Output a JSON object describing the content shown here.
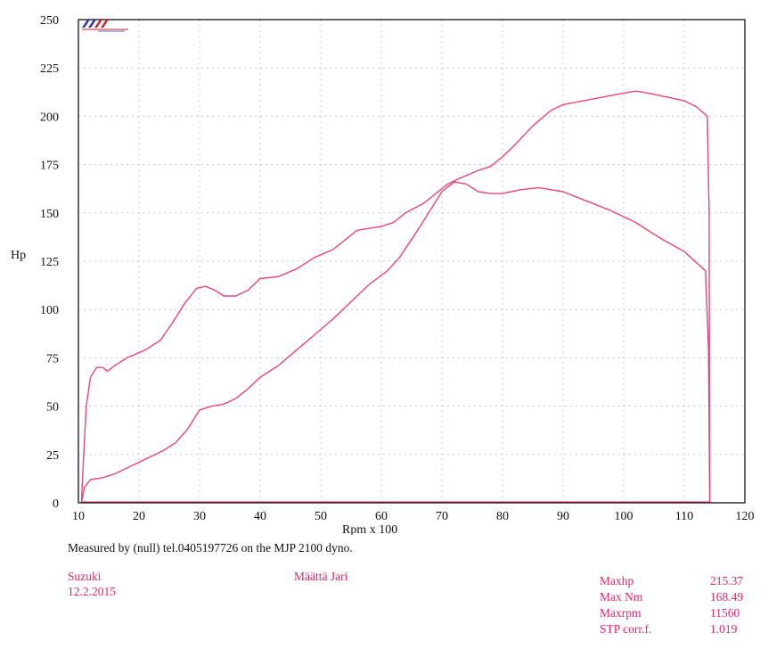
{
  "chart_data": {
    "type": "line",
    "title": "",
    "xlabel": "Rpm x 100",
    "ylabel": "Hp",
    "xlim": [
      10,
      120
    ],
    "ylim": [
      0,
      250
    ],
    "x_ticks": [
      "10",
      "20",
      "30",
      "40",
      "50",
      "60",
      "70",
      "80",
      "90",
      "100",
      "110",
      "120"
    ],
    "y_ticks": [
      "0",
      "25",
      "50",
      "75",
      "100",
      "125",
      "150",
      "175",
      "200",
      "225",
      "250"
    ],
    "grid": true,
    "colors": {
      "curve": "#e8447e",
      "axis": "#111111",
      "grid": "#c8c8c8"
    },
    "series": [
      {
        "points": [
          [
            10.5,
            0
          ],
          [
            10.8,
            20
          ],
          [
            11.3,
            50
          ],
          [
            12.0,
            65
          ],
          [
            13.0,
            70
          ],
          [
            14.0,
            70
          ],
          [
            14.8,
            68
          ],
          [
            16.0,
            71
          ],
          [
            18.0,
            75
          ],
          [
            21.0,
            79
          ],
          [
            23.5,
            84
          ],
          [
            25.5,
            93
          ],
          [
            27.5,
            103
          ],
          [
            29.5,
            111
          ],
          [
            31.0,
            112
          ],
          [
            32.5,
            110
          ],
          [
            34.0,
            107
          ],
          [
            36.0,
            107
          ],
          [
            38.0,
            110
          ],
          [
            40.0,
            116
          ],
          [
            43.0,
            117
          ],
          [
            46.0,
            121
          ],
          [
            49.0,
            127
          ],
          [
            52.0,
            131
          ],
          [
            54.0,
            136
          ],
          [
            56.0,
            141
          ],
          [
            58.0,
            142
          ],
          [
            60.0,
            143
          ],
          [
            62.0,
            145
          ],
          [
            64.0,
            150
          ],
          [
            67.0,
            155
          ],
          [
            69.0,
            160
          ],
          [
            71.0,
            165
          ],
          [
            73.0,
            168
          ],
          [
            76.0,
            172
          ],
          [
            78.0,
            174
          ],
          [
            80.0,
            179
          ],
          [
            82.0,
            185
          ],
          [
            85.0,
            195
          ],
          [
            88.0,
            203
          ],
          [
            90.0,
            206
          ],
          [
            95.0,
            209
          ],
          [
            100.0,
            212
          ],
          [
            102.0,
            213
          ],
          [
            104.0,
            212
          ],
          [
            107.0,
            210
          ],
          [
            110.0,
            208
          ],
          [
            112.0,
            205
          ],
          [
            113.8,
            200
          ],
          [
            114.1,
            150
          ],
          [
            114.2,
            0
          ]
        ]
      },
      {
        "points": [
          [
            10.5,
            0
          ],
          [
            11.0,
            8
          ],
          [
            12.0,
            12
          ],
          [
            14.0,
            13
          ],
          [
            16.0,
            15
          ],
          [
            18.0,
            18
          ],
          [
            20.0,
            21
          ],
          [
            22.0,
            24
          ],
          [
            24.0,
            27
          ],
          [
            26.0,
            31
          ],
          [
            28.0,
            38
          ],
          [
            30.0,
            48
          ],
          [
            32.0,
            50
          ],
          [
            34.0,
            51
          ],
          [
            36.0,
            54
          ],
          [
            38.0,
            59
          ],
          [
            40.0,
            65
          ],
          [
            43.0,
            71
          ],
          [
            46.0,
            79
          ],
          [
            49.0,
            87
          ],
          [
            52.0,
            95
          ],
          [
            55.0,
            104
          ],
          [
            58.0,
            113
          ],
          [
            61.0,
            120
          ],
          [
            63.0,
            127
          ],
          [
            66.0,
            141
          ],
          [
            68.0,
            151
          ],
          [
            70.0,
            161
          ],
          [
            72.0,
            166
          ],
          [
            74.0,
            165
          ],
          [
            76.0,
            161
          ],
          [
            78.0,
            160
          ],
          [
            80.0,
            160
          ],
          [
            83.0,
            162
          ],
          [
            86.0,
            163
          ],
          [
            90.0,
            161
          ],
          [
            94.0,
            156
          ],
          [
            98.0,
            151
          ],
          [
            102.0,
            145
          ],
          [
            106.0,
            137
          ],
          [
            110.0,
            130
          ],
          [
            113.5,
            120
          ],
          [
            114.0,
            80
          ],
          [
            114.2,
            0
          ]
        ]
      }
    ],
    "annotations": {
      "measured_by": "Measured by (null) tel.0405197726 on the MJP 2100 dyno.",
      "make": "Suzuki",
      "date": "12.2.2015",
      "owner": "Määttä Jari"
    },
    "stats": [
      {
        "label": "Maxhp",
        "value": "215.37"
      },
      {
        "label": "Max Nm",
        "value": "168.49"
      },
      {
        "label": "Maxrpm",
        "value": "11560"
      },
      {
        "label": "STP corr.f.",
        "value": "1.019"
      }
    ]
  }
}
